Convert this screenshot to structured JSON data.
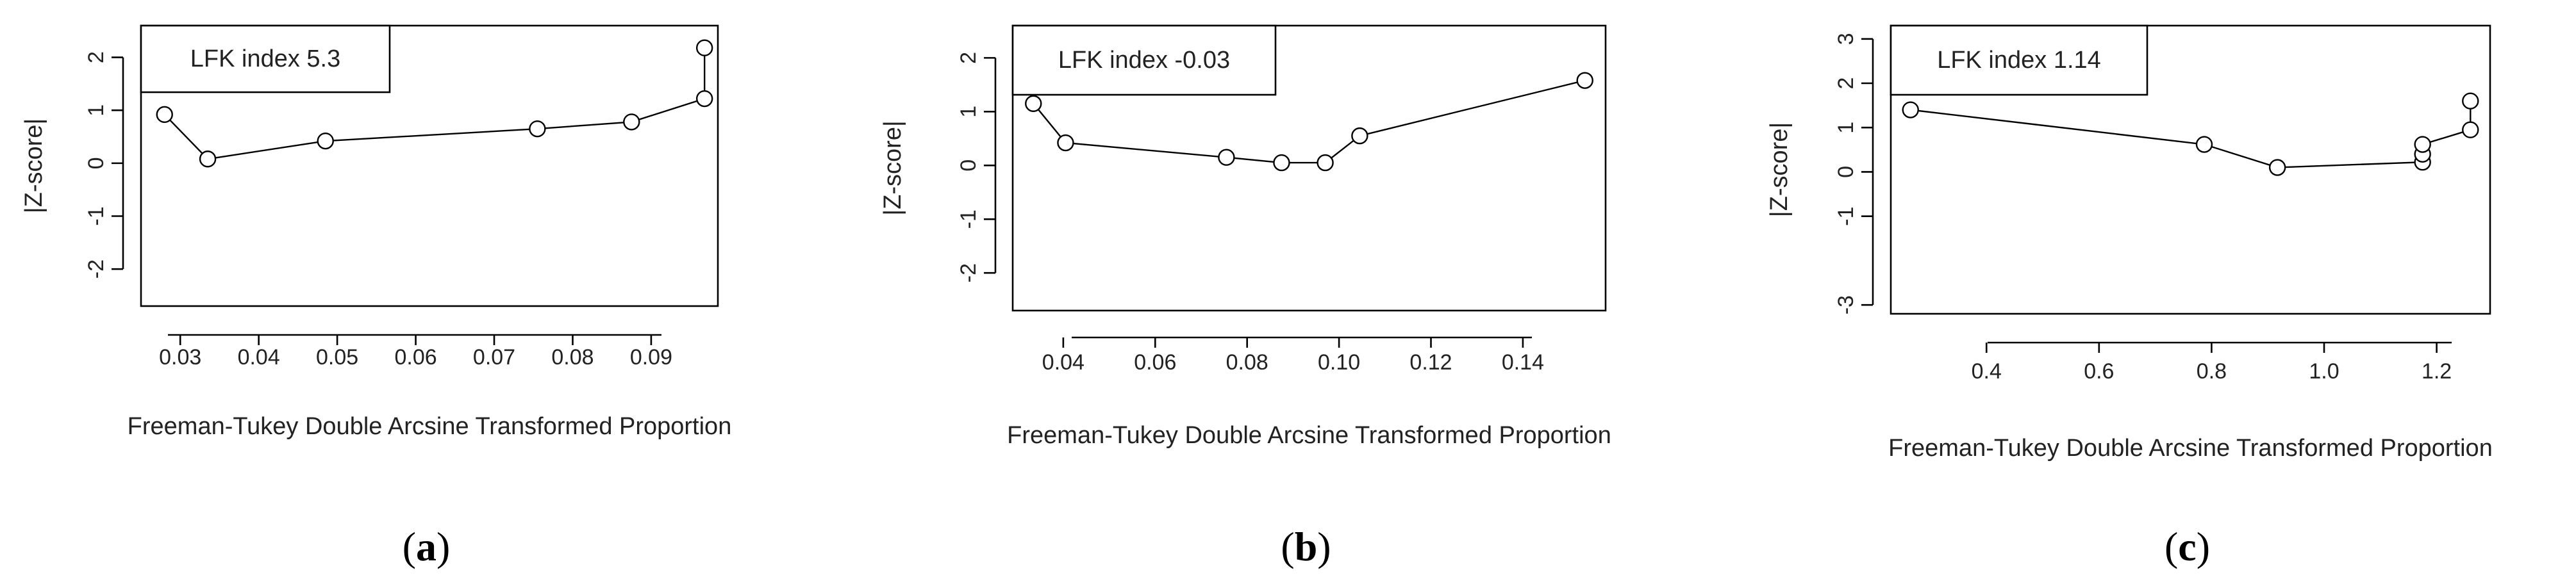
{
  "chart_data": [
    {
      "panel": "(a)",
      "panel_letter": "a",
      "type": "line",
      "legend": "LFK index 5.3",
      "xlabel": "Freeman-Tukey Double Arcsine Transformed Proportion",
      "ylabel": "|Z-score|",
      "xlim": [
        0.025,
        0.0985
      ],
      "ylim": [
        -2.7,
        2.6
      ],
      "xticks": [
        0.03,
        0.04,
        0.05,
        0.06,
        0.07,
        0.08,
        0.09
      ],
      "xtick_labels": [
        "0.03",
        "0.04",
        "0.05",
        "0.06",
        "0.07",
        "0.08",
        "0.09"
      ],
      "yticks": [
        -2,
        -1,
        0,
        1,
        2
      ],
      "ytick_labels": [
        "-2",
        "-1",
        "0",
        "1",
        "2"
      ],
      "points": [
        {
          "x": 0.028,
          "y": 0.92
        },
        {
          "x": 0.0335,
          "y": 0.08
        },
        {
          "x": 0.0485,
          "y": 0.42
        },
        {
          "x": 0.0755,
          "y": 0.65
        },
        {
          "x": 0.0875,
          "y": 0.78
        },
        {
          "x": 0.0968,
          "y": 1.22
        },
        {
          "x": 0.0968,
          "y": 2.18
        }
      ]
    },
    {
      "panel": "(b)",
      "panel_letter": "b",
      "type": "line",
      "legend": "LFK index -0.03",
      "xlabel": "Freeman-Tukey Double Arcsine Transformed Proportion",
      "ylabel": "|Z-score|",
      "xlim": [
        0.029,
        0.158
      ],
      "ylim": [
        -2.7,
        2.6
      ],
      "xticks": [
        0.04,
        0.06,
        0.08,
        0.1,
        0.12,
        0.14
      ],
      "xtick_labels": [
        "0.04",
        "0.06",
        "0.08",
        "0.10",
        "0.12",
        "0.14"
      ],
      "yticks": [
        -2,
        -1,
        0,
        1,
        2
      ],
      "ytick_labels": [
        "-2",
        "-1",
        "0",
        "1",
        "2"
      ],
      "points": [
        {
          "x": 0.0335,
          "y": 1.15
        },
        {
          "x": 0.0405,
          "y": 0.42
        },
        {
          "x": 0.0755,
          "y": 0.15
        },
        {
          "x": 0.0875,
          "y": 0.05
        },
        {
          "x": 0.097,
          "y": 0.05
        },
        {
          "x": 0.1045,
          "y": 0.55
        },
        {
          "x": 0.1535,
          "y": 1.58
        }
      ]
    },
    {
      "panel": "(c)",
      "panel_letter": "c",
      "type": "line",
      "legend": "LFK index 1.14",
      "xlabel": "Freeman-Tukey Double Arcsine Transformed Proportion",
      "ylabel": "|Z-score|",
      "xlim": [
        0.23,
        1.295
      ],
      "ylim": [
        -3.2,
        3.3
      ],
      "xticks": [
        0.4,
        0.6,
        0.8,
        1.0,
        1.2
      ],
      "xtick_labels": [
        "0.4",
        "0.6",
        "0.8",
        "1.0",
        "1.2"
      ],
      "yticks": [
        -3,
        -1,
        0,
        1,
        2,
        3
      ],
      "ytick_labels": [
        "-3",
        "-1",
        "0",
        "1",
        "2",
        "3"
      ],
      "points": [
        {
          "x": 0.265,
          "y": 1.4
        },
        {
          "x": 0.787,
          "y": 0.62
        },
        {
          "x": 0.917,
          "y": 0.1
        },
        {
          "x": 1.175,
          "y": 0.22
        },
        {
          "x": 1.175,
          "y": 0.4
        },
        {
          "x": 1.175,
          "y": 0.62
        },
        {
          "x": 1.26,
          "y": 0.95
        },
        {
          "x": 1.26,
          "y": 1.6
        }
      ]
    }
  ]
}
